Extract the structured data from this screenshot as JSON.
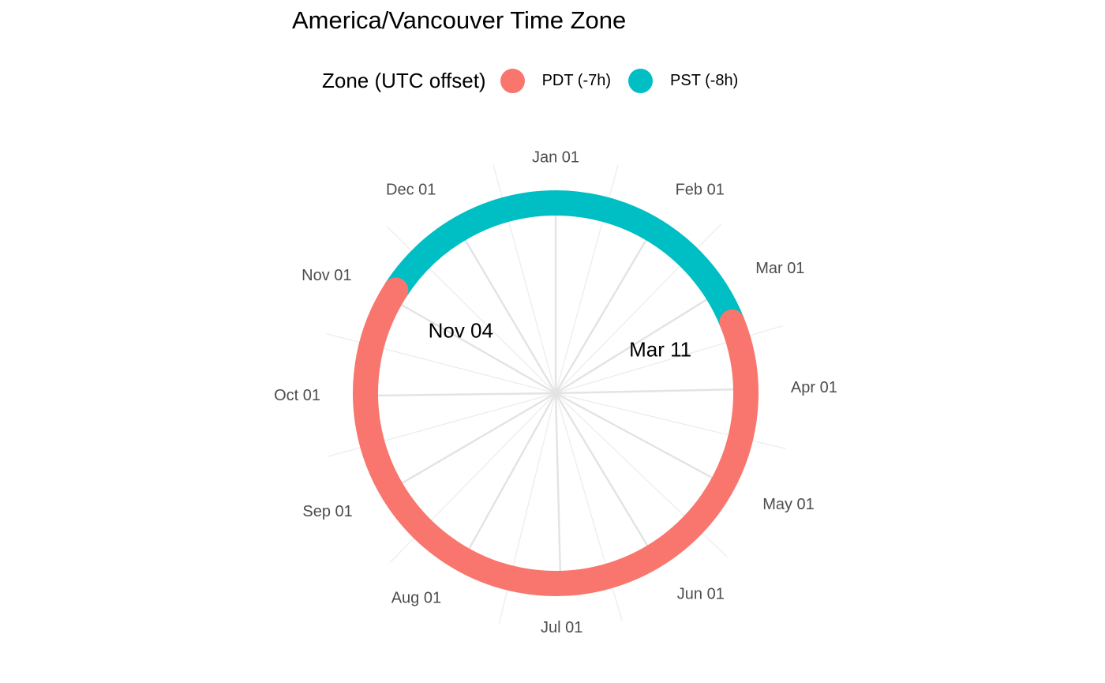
{
  "chart_data": {
    "type": "polar-arc",
    "title": "America/Vancouver Time Zone",
    "legend": {
      "title": "Zone (UTC offset)",
      "placement": "top",
      "entries": [
        {
          "label": "PDT (-7h)",
          "color": "#F8766D"
        },
        {
          "label": "PST (-8h)",
          "color": "#00BFC4"
        }
      ]
    },
    "theta_axis": {
      "unit": "day of year",
      "range": [
        1,
        366
      ],
      "direction": "clockwise",
      "zero_at": "top",
      "ticks": [
        {
          "label": "Jan 01",
          "day": 1
        },
        {
          "label": "Feb 01",
          "day": 32
        },
        {
          "label": "Mar 01",
          "day": 60
        },
        {
          "label": "Apr 01",
          "day": 91
        },
        {
          "label": "May 01",
          "day": 121
        },
        {
          "label": "Jun 01",
          "day": 152
        },
        {
          "label": "Jul 01",
          "day": 182
        },
        {
          "label": "Aug 01",
          "day": 213
        },
        {
          "label": "Sep 01",
          "day": 244
        },
        {
          "label": "Oct 01",
          "day": 274
        },
        {
          "label": "Nov 01",
          "day": 305
        },
        {
          "label": "Dec 01",
          "day": 335
        }
      ]
    },
    "grid": true,
    "segments": [
      {
        "zone": "PST (-8h)",
        "start_day": 1,
        "end_day": 70
      },
      {
        "zone": "PDT (-7h)",
        "start_day": 70,
        "end_day": 308
      },
      {
        "zone": "PST (-8h)",
        "start_day": 308,
        "end_day": 366
      }
    ],
    "annotations": [
      {
        "label": "Mar 11",
        "day": 70
      },
      {
        "label": "Nov 04",
        "day": 308
      }
    ]
  }
}
